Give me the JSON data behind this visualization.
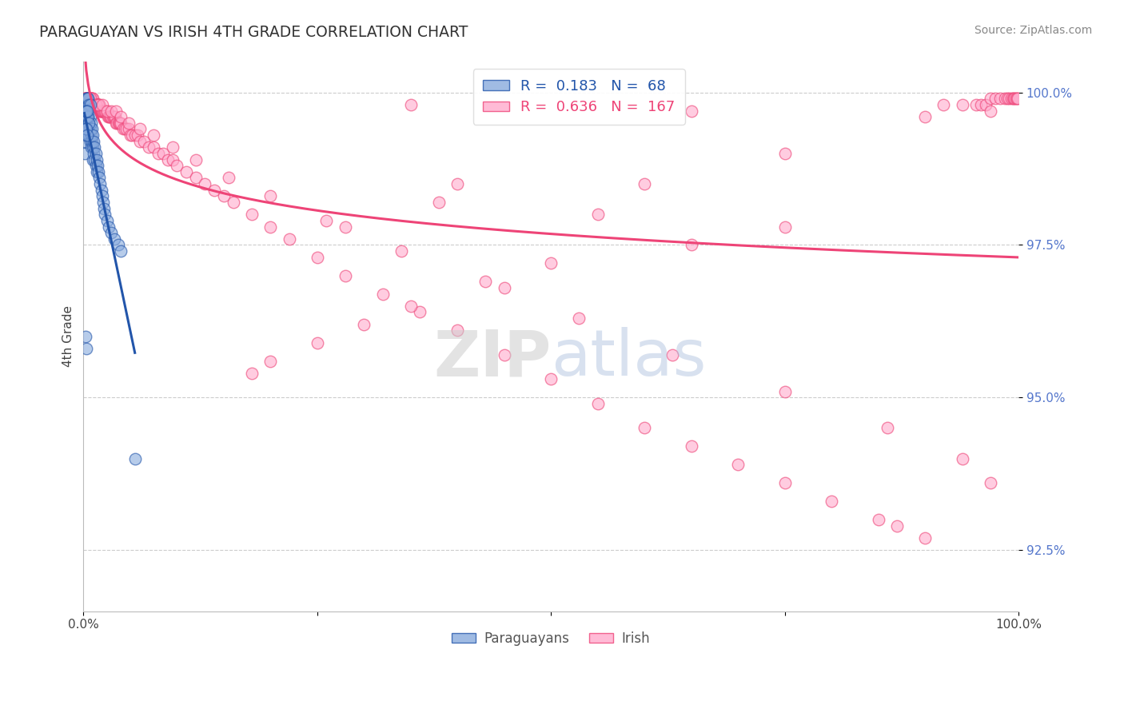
{
  "title": "PARAGUAYAN VS IRISH 4TH GRADE CORRELATION CHART",
  "source_text": "Source: ZipAtlas.com",
  "ylabel": "4th Grade",
  "xlim": [
    0.0,
    1.0
  ],
  "ylim": [
    0.915,
    1.005
  ],
  "yticks": [
    0.925,
    0.95,
    0.975,
    1.0
  ],
  "ytick_labels": [
    "92.5%",
    "95.0%",
    "97.5%",
    "100.0%"
  ],
  "xticks": [
    0.0,
    0.25,
    0.5,
    0.75,
    1.0
  ],
  "xtick_labels": [
    "0.0%",
    "",
    "",
    "",
    "100.0%"
  ],
  "paraguayan_R": 0.183,
  "paraguayan_N": 68,
  "irish_R": 0.636,
  "irish_N": 167,
  "blue_color": "#88AADD",
  "pink_color": "#FFAACC",
  "blue_line_color": "#2255AA",
  "pink_line_color": "#EE4477",
  "background_color": "#FFFFFF",
  "par_x": [
    0.001,
    0.001,
    0.002,
    0.002,
    0.003,
    0.003,
    0.003,
    0.004,
    0.004,
    0.004,
    0.005,
    0.005,
    0.005,
    0.006,
    0.006,
    0.006,
    0.007,
    0.007,
    0.007,
    0.008,
    0.008,
    0.008,
    0.009,
    0.009,
    0.01,
    0.01,
    0.01,
    0.011,
    0.011,
    0.012,
    0.012,
    0.013,
    0.013,
    0.014,
    0.014,
    0.015,
    0.016,
    0.017,
    0.018,
    0.019,
    0.02,
    0.021,
    0.022,
    0.023,
    0.025,
    0.027,
    0.03,
    0.033,
    0.037,
    0.04,
    0.003,
    0.004,
    0.005,
    0.006,
    0.007,
    0.003,
    0.004,
    0.005,
    0.006,
    0.002,
    0.003,
    0.004,
    0.002,
    0.003,
    0.004,
    0.002,
    0.003,
    0.055
  ],
  "par_y": [
    0.99,
    0.992,
    0.993,
    0.995,
    0.997,
    0.998,
    0.996,
    0.999,
    0.997,
    0.995,
    0.998,
    0.996,
    0.994,
    0.997,
    0.995,
    0.993,
    0.996,
    0.994,
    0.992,
    0.995,
    0.993,
    0.991,
    0.994,
    0.992,
    0.993,
    0.991,
    0.989,
    0.992,
    0.99,
    0.991,
    0.989,
    0.99,
    0.988,
    0.989,
    0.987,
    0.988,
    0.987,
    0.986,
    0.985,
    0.984,
    0.983,
    0.982,
    0.981,
    0.98,
    0.979,
    0.978,
    0.977,
    0.976,
    0.975,
    0.974,
    0.999,
    0.999,
    0.999,
    0.998,
    0.998,
    0.996,
    0.996,
    0.996,
    0.995,
    0.997,
    0.997,
    0.997,
    0.994,
    0.994,
    0.993,
    0.96,
    0.958,
    0.94
  ],
  "iri_x": [
    0.001,
    0.001,
    0.002,
    0.002,
    0.003,
    0.003,
    0.004,
    0.004,
    0.005,
    0.005,
    0.006,
    0.006,
    0.007,
    0.007,
    0.008,
    0.008,
    0.009,
    0.009,
    0.01,
    0.01,
    0.011,
    0.011,
    0.012,
    0.012,
    0.013,
    0.013,
    0.014,
    0.014,
    0.015,
    0.015,
    0.016,
    0.016,
    0.017,
    0.017,
    0.018,
    0.018,
    0.019,
    0.019,
    0.02,
    0.02,
    0.021,
    0.022,
    0.023,
    0.024,
    0.025,
    0.026,
    0.027,
    0.028,
    0.029,
    0.03,
    0.031,
    0.032,
    0.033,
    0.034,
    0.035,
    0.036,
    0.037,
    0.038,
    0.039,
    0.04,
    0.042,
    0.044,
    0.046,
    0.048,
    0.05,
    0.052,
    0.055,
    0.058,
    0.06,
    0.065,
    0.07,
    0.075,
    0.08,
    0.085,
    0.09,
    0.095,
    0.1,
    0.11,
    0.12,
    0.13,
    0.14,
    0.15,
    0.16,
    0.18,
    0.2,
    0.22,
    0.25,
    0.28,
    0.32,
    0.36,
    0.4,
    0.45,
    0.5,
    0.55,
    0.6,
    0.65,
    0.7,
    0.75,
    0.8,
    0.85,
    0.87,
    0.9,
    0.92,
    0.94,
    0.955,
    0.96,
    0.965,
    0.97,
    0.975,
    0.98,
    0.985,
    0.988,
    0.99,
    0.992,
    0.994,
    0.995,
    0.996,
    0.997,
    0.998,
    0.999,
    0.003,
    0.005,
    0.007,
    0.01,
    0.013,
    0.016,
    0.02,
    0.025,
    0.03,
    0.035,
    0.04,
    0.048,
    0.06,
    0.075,
    0.095,
    0.12,
    0.155,
    0.2,
    0.26,
    0.34,
    0.43,
    0.53,
    0.63,
    0.75,
    0.86,
    0.94,
    0.97,
    0.002,
    0.35,
    0.65,
    0.9,
    0.97,
    0.4,
    0.6,
    0.55,
    0.75,
    0.65,
    0.5,
    0.45,
    0.35,
    0.3,
    0.25,
    0.2,
    0.18,
    0.38,
    0.28,
    0.75
  ],
  "iri_y": [
    0.999,
    0.999,
    0.999,
    0.999,
    0.999,
    0.999,
    0.999,
    0.999,
    0.999,
    0.999,
    0.999,
    0.999,
    0.999,
    0.999,
    0.999,
    0.999,
    0.999,
    0.999,
    0.999,
    0.998,
    0.998,
    0.998,
    0.998,
    0.998,
    0.998,
    0.998,
    0.998,
    0.998,
    0.998,
    0.998,
    0.998,
    0.998,
    0.998,
    0.998,
    0.997,
    0.997,
    0.997,
    0.997,
    0.997,
    0.997,
    0.997,
    0.997,
    0.997,
    0.997,
    0.997,
    0.996,
    0.996,
    0.996,
    0.996,
    0.996,
    0.996,
    0.996,
    0.996,
    0.996,
    0.995,
    0.995,
    0.995,
    0.995,
    0.995,
    0.995,
    0.994,
    0.994,
    0.994,
    0.994,
    0.993,
    0.993,
    0.993,
    0.993,
    0.992,
    0.992,
    0.991,
    0.991,
    0.99,
    0.99,
    0.989,
    0.989,
    0.988,
    0.987,
    0.986,
    0.985,
    0.984,
    0.983,
    0.982,
    0.98,
    0.978,
    0.976,
    0.973,
    0.97,
    0.967,
    0.964,
    0.961,
    0.957,
    0.953,
    0.949,
    0.945,
    0.942,
    0.939,
    0.936,
    0.933,
    0.93,
    0.929,
    0.927,
    0.998,
    0.998,
    0.998,
    0.998,
    0.998,
    0.999,
    0.999,
    0.999,
    0.999,
    0.999,
    0.999,
    0.999,
    0.999,
    0.999,
    0.999,
    0.999,
    0.999,
    0.999,
    0.999,
    0.999,
    0.999,
    0.998,
    0.998,
    0.998,
    0.998,
    0.997,
    0.997,
    0.997,
    0.996,
    0.995,
    0.994,
    0.993,
    0.991,
    0.989,
    0.986,
    0.983,
    0.979,
    0.974,
    0.969,
    0.963,
    0.957,
    0.951,
    0.945,
    0.94,
    0.936,
    0.999,
    0.998,
    0.997,
    0.996,
    0.997,
    0.985,
    0.985,
    0.98,
    0.978,
    0.975,
    0.972,
    0.968,
    0.965,
    0.962,
    0.959,
    0.956,
    0.954,
    0.982,
    0.978,
    0.99
  ]
}
